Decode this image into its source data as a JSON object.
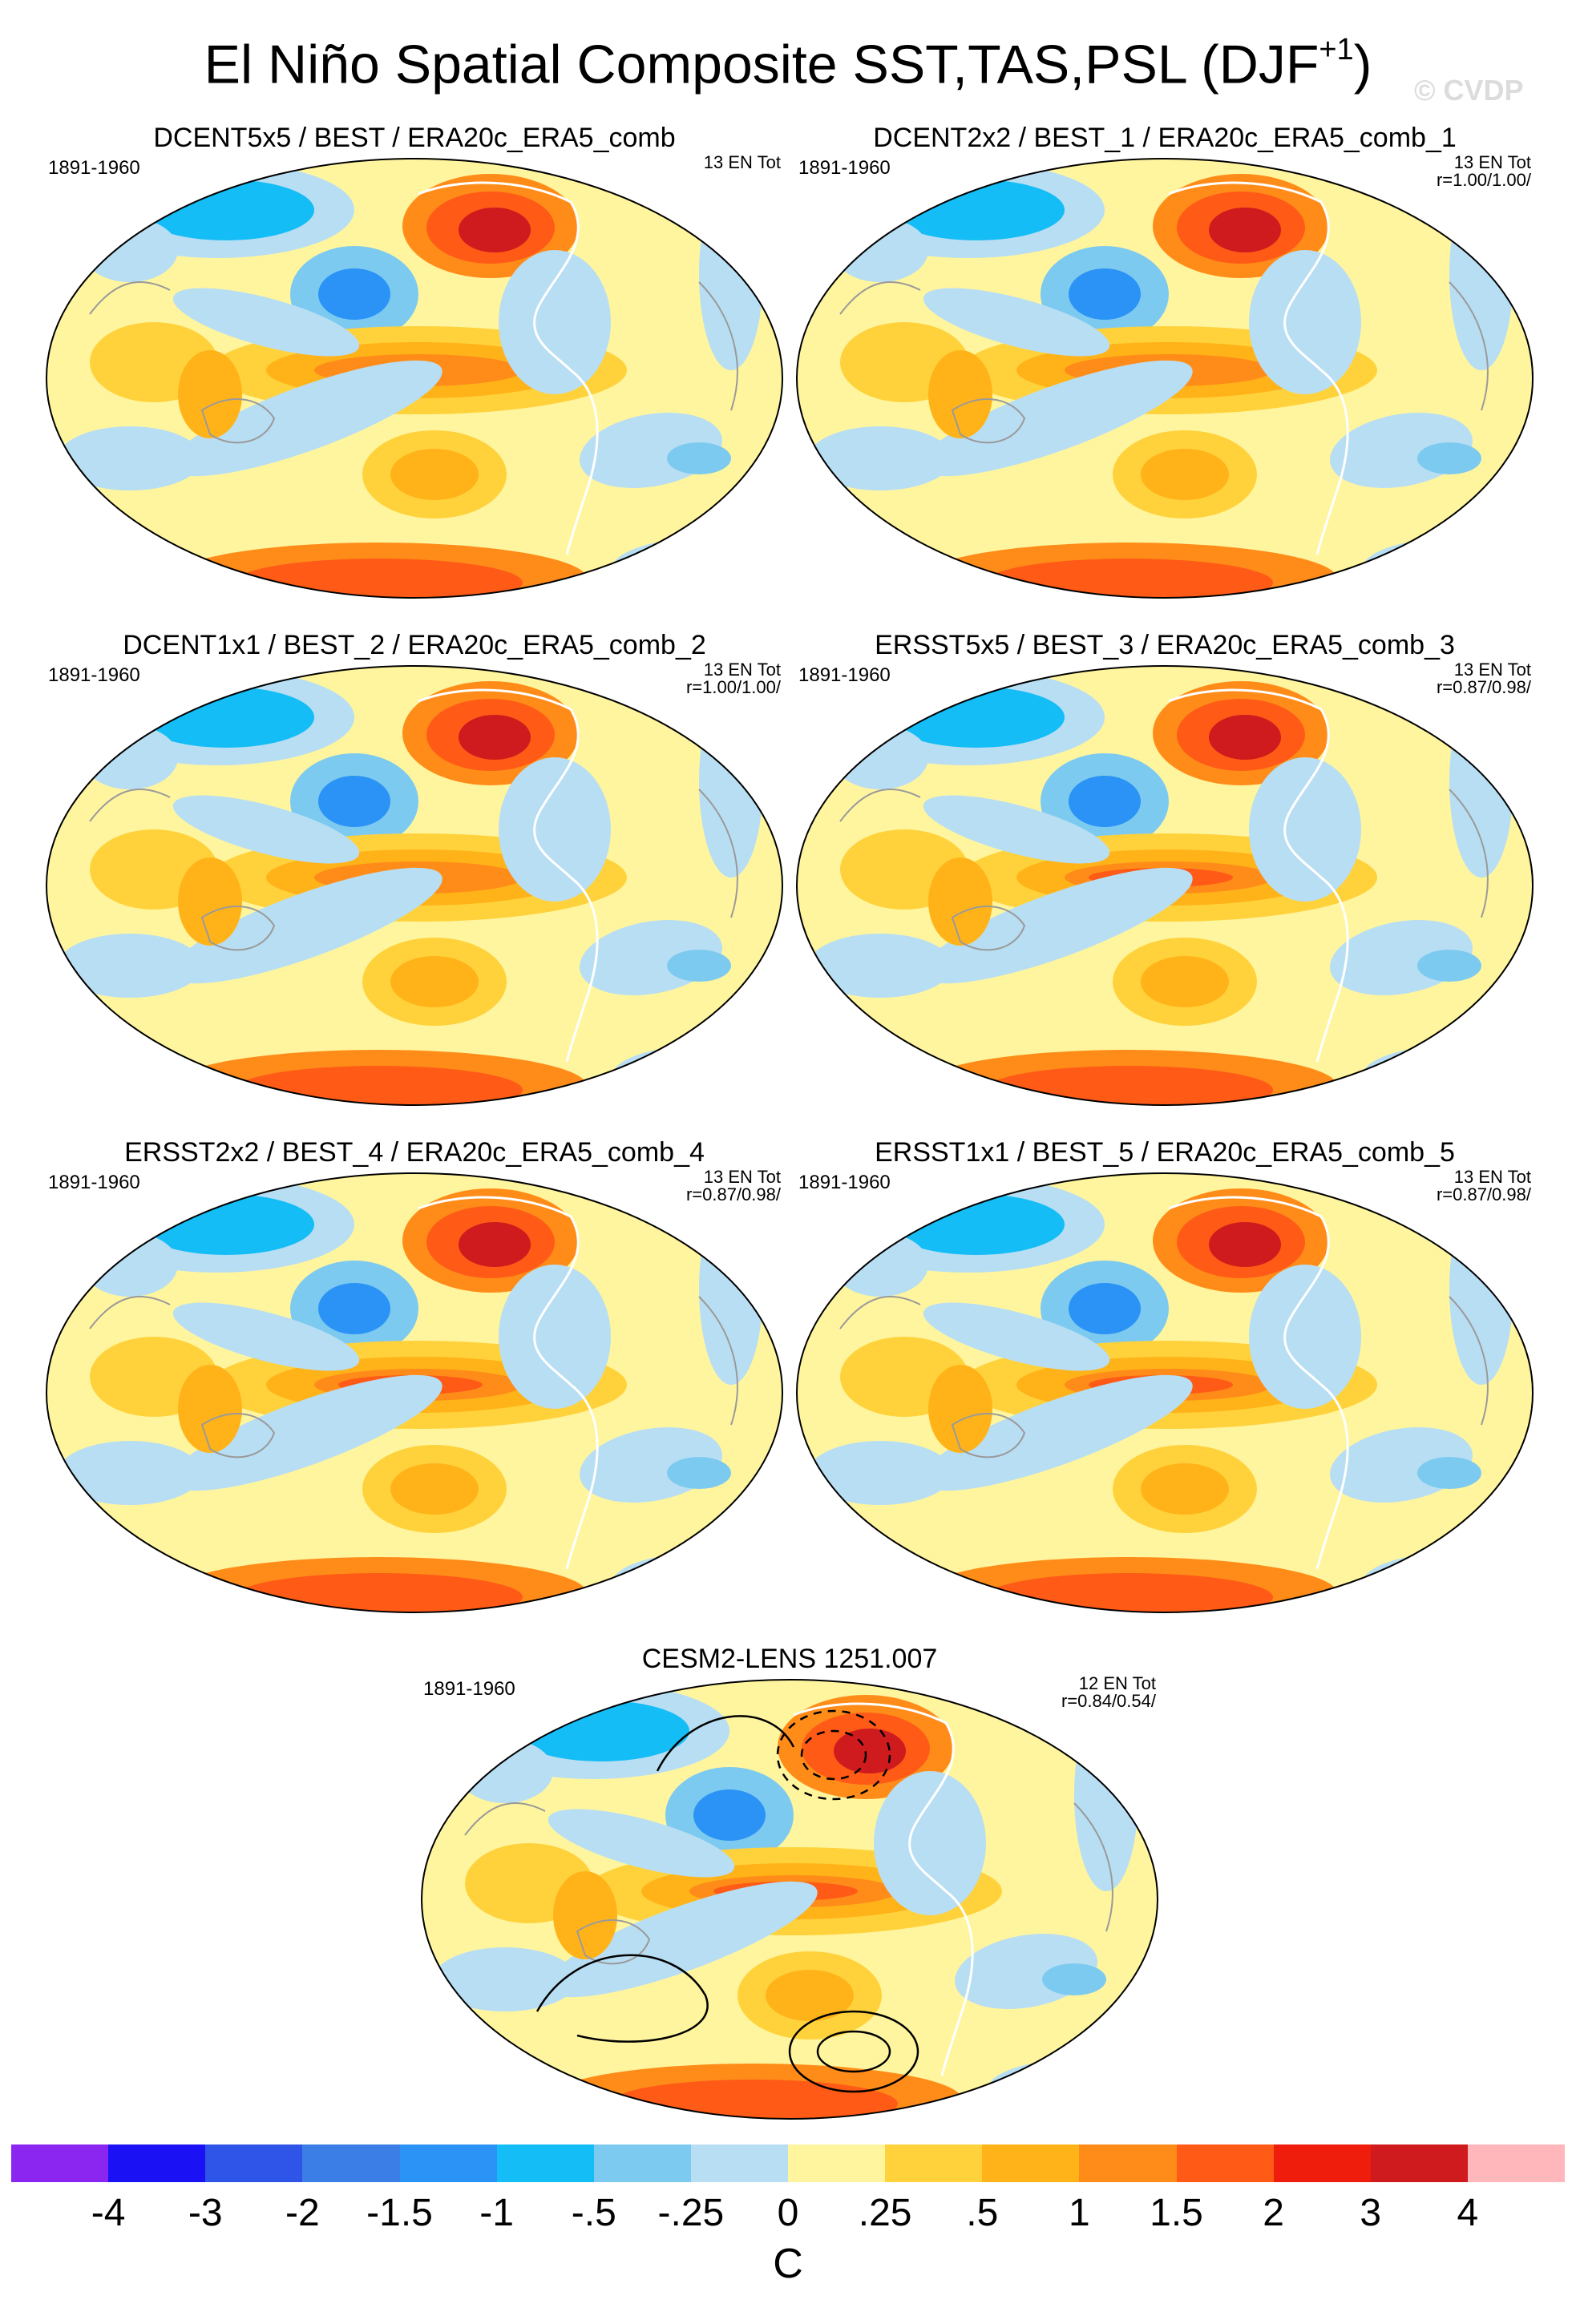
{
  "title": {
    "main": "El Niño Spatial Composite SST,TAS,PSL (DJF",
    "superscript": "+1",
    "close": ")"
  },
  "watermark": "© CVDP",
  "panels": [
    {
      "name": "DCENT5x5 / BEST / ERA20c_ERA5_comb",
      "years": "1891-1960",
      "count": "13 EN Tot",
      "r": ""
    },
    {
      "name": "DCENT2x2 / BEST_1 / ERA20c_ERA5_comb_1",
      "years": "1891-1960",
      "count": "13 EN Tot",
      "r": "r=1.00/1.00/"
    },
    {
      "name": "DCENT1x1 / BEST_2 / ERA20c_ERA5_comb_2",
      "years": "1891-1960",
      "count": "13 EN Tot",
      "r": "r=1.00/1.00/"
    },
    {
      "name": "ERSST5x5 / BEST_3 / ERA20c_ERA5_comb_3",
      "years": "1891-1960",
      "count": "13 EN Tot",
      "r": "r=0.87/0.98/"
    },
    {
      "name": "ERSST2x2 / BEST_4 / ERA20c_ERA5_comb_4",
      "years": "1891-1960",
      "count": "13 EN Tot",
      "r": "r=0.87/0.98/"
    },
    {
      "name": "ERSST1x1 / BEST_5 / ERA20c_ERA5_comb_5",
      "years": "1891-1960",
      "count": "13 EN Tot",
      "r": "r=0.87/0.98/"
    },
    {
      "name": "CESM2-LENS 1251.007",
      "years": "1891-1960",
      "count": "12 EN Tot",
      "r": "r=0.84/0.54/"
    }
  ],
  "colorbar": {
    "colors": [
      "#8b25f0",
      "#1a12f5",
      "#2f55e8",
      "#3b7ee6",
      "#2a93f5",
      "#14bdf5",
      "#7dcaf0",
      "#b8def3",
      "#fff59e",
      "#ffd23c",
      "#ffb319",
      "#ff8c19",
      "#ff5a16",
      "#ee1d0c",
      "#cf1b1e",
      "#ffb7bb"
    ],
    "labels": [
      "-4",
      "-3",
      "-2",
      "-1.5",
      "-1",
      "-.5",
      "-.25",
      "0",
      ".25",
      ".5",
      "1",
      "1.5",
      "2",
      "3",
      "4"
    ],
    "unit": "C"
  }
}
